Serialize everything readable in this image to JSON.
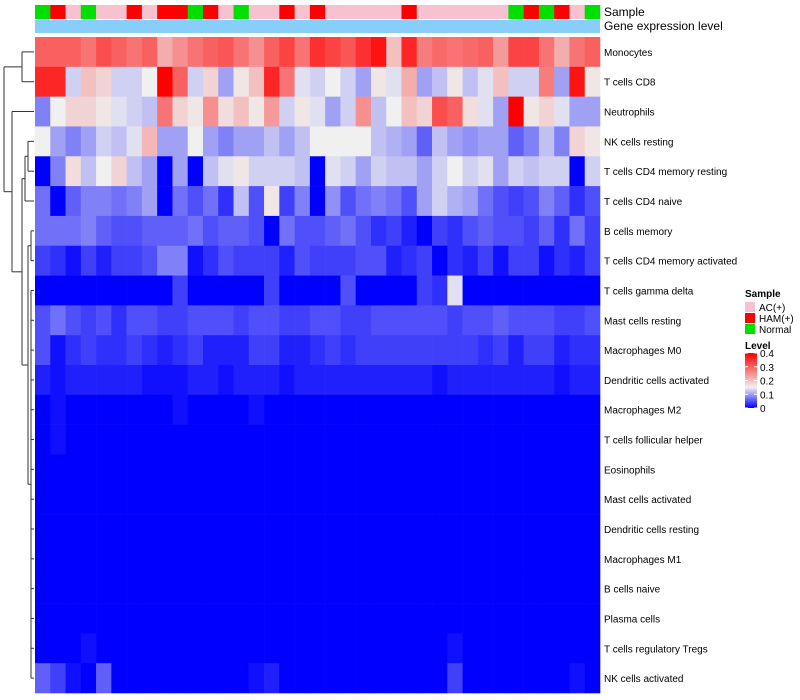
{
  "chart_data": {
    "type": "heatmap",
    "title": "",
    "annotation_labels": {
      "sample": "Sample",
      "gene_expression": "Gene expression level"
    },
    "sample_groups": [
      "AC(+)",
      "HAM(+)",
      "Normal"
    ],
    "sample_group_colors": {
      "AC(+)": "#f7c1cf",
      "HAM(+)": "#ff0000",
      "Normal": "#00e000"
    },
    "gene_expression_color": "#87cefa",
    "columns_sample_group": [
      "Normal",
      "HAM(+)",
      "AC(+)",
      "Normal",
      "AC(+)",
      "AC(+)",
      "HAM(+)",
      "AC(+)",
      "HAM(+)",
      "HAM(+)",
      "Normal",
      "HAM(+)",
      "AC(+)",
      "Normal",
      "AC(+)",
      "AC(+)",
      "HAM(+)",
      "AC(+)",
      "HAM(+)",
      "AC(+)",
      "AC(+)",
      "AC(+)",
      "AC(+)",
      "AC(+)",
      "HAM(+)",
      "AC(+)",
      "AC(+)",
      "AC(+)",
      "AC(+)",
      "AC(+)",
      "AC(+)",
      "Normal",
      "HAM(+)",
      "Normal",
      "HAM(+)",
      "AC(+)",
      "Normal"
    ],
    "rows": [
      "Monocytes",
      "T cells CD8",
      "Neutrophils",
      "NK cells resting",
      "T cells CD4 memory resting",
      "T cells CD4 naive",
      "B cells memory",
      "T cells CD4 memory activated",
      "T cells gamma delta",
      "Mast cells resting",
      "Macrophages M0",
      "Dendritic cells activated",
      "Macrophages M2",
      "T cells follicular helper",
      "Eosinophils",
      "Mast cells activated",
      "Dendritic cells resting",
      "Macrophages M1",
      "B cells naive",
      "Plasma cells",
      "T cells regulatory  Tregs",
      "NK cells activated"
    ],
    "values": [
      [
        0.3,
        0.3,
        0.3,
        0.28,
        0.32,
        0.3,
        0.28,
        0.3,
        0.22,
        0.25,
        0.28,
        0.3,
        0.31,
        0.28,
        0.25,
        0.3,
        0.33,
        0.28,
        0.35,
        0.33,
        0.31,
        0.35,
        0.38,
        0.2,
        0.36,
        0.27,
        0.29,
        0.28,
        0.29,
        0.3,
        0.24,
        0.33,
        0.33,
        0.28,
        0.22,
        0.28,
        0.3
      ],
      [
        0.36,
        0.36,
        0.13,
        0.2,
        0.18,
        0.13,
        0.13,
        0.15,
        0.4,
        0.3,
        0.13,
        0.18,
        0.1,
        0.16,
        0.2,
        0.36,
        0.28,
        0.14,
        0.13,
        0.15,
        0.13,
        0.1,
        0.16,
        0.14,
        0.22,
        0.1,
        0.12,
        0.16,
        0.12,
        0.14,
        0.2,
        0.13,
        0.13,
        0.27,
        0.1,
        0.38,
        0.16
      ],
      [
        0.08,
        0.15,
        0.18,
        0.18,
        0.16,
        0.14,
        0.13,
        0.12,
        0.28,
        0.18,
        0.16,
        0.25,
        0.17,
        0.2,
        0.16,
        0.24,
        0.13,
        0.16,
        0.14,
        0.1,
        0.13,
        0.25,
        0.12,
        0.15,
        0.2,
        0.18,
        0.32,
        0.3,
        0.17,
        0.14,
        0.1,
        0.4,
        0.16,
        0.18,
        0.14,
        0.1,
        0.1
      ],
      [
        0.15,
        0.1,
        0.08,
        0.1,
        0.13,
        0.12,
        0.14,
        0.21,
        0.1,
        0.1,
        0.15,
        0.1,
        0.08,
        0.1,
        0.1,
        0.12,
        0.1,
        0.12,
        0.15,
        0.15,
        0.15,
        0.15,
        0.12,
        0.11,
        0.1,
        0.06,
        0.12,
        0.1,
        0.09,
        0.1,
        0.1,
        0.06,
        0.08,
        0.12,
        0.08,
        0.18,
        0.16
      ],
      [
        0.0,
        0.08,
        0.17,
        0.12,
        0.15,
        0.18,
        0.12,
        0.1,
        0.0,
        0.1,
        0.0,
        0.12,
        0.14,
        0.16,
        0.13,
        0.13,
        0.13,
        0.12,
        0.0,
        0.14,
        0.13,
        0.1,
        0.13,
        0.12,
        0.12,
        0.1,
        0.13,
        0.15,
        0.13,
        0.14,
        0.1,
        0.13,
        0.12,
        0.13,
        0.13,
        0.0,
        0.13
      ],
      [
        0.07,
        0.0,
        0.06,
        0.08,
        0.08,
        0.07,
        0.08,
        0.1,
        0.0,
        0.07,
        0.05,
        0.07,
        0.03,
        0.12,
        0.05,
        0.16,
        0.04,
        0.08,
        0.0,
        0.09,
        0.05,
        0.07,
        0.08,
        0.07,
        0.05,
        0.1,
        0.13,
        0.11,
        0.1,
        0.07,
        0.05,
        0.04,
        0.05,
        0.08,
        0.06,
        0.03,
        0.05
      ],
      [
        0.07,
        0.07,
        0.07,
        0.08,
        0.06,
        0.05,
        0.05,
        0.06,
        0.06,
        0.06,
        0.07,
        0.05,
        0.06,
        0.06,
        0.05,
        0.0,
        0.07,
        0.05,
        0.05,
        0.06,
        0.07,
        0.05,
        0.03,
        0.04,
        0.02,
        0.0,
        0.04,
        0.03,
        0.05,
        0.06,
        0.05,
        0.05,
        0.04,
        0.06,
        0.03,
        0.07,
        0.04
      ],
      [
        0.04,
        0.03,
        0.01,
        0.04,
        0.02,
        0.04,
        0.04,
        0.05,
        0.08,
        0.08,
        0.01,
        0.03,
        0.05,
        0.04,
        0.04,
        0.04,
        0.02,
        0.05,
        0.04,
        0.04,
        0.04,
        0.05,
        0.05,
        0.02,
        0.03,
        0.04,
        0.0,
        0.03,
        0.02,
        0.04,
        0.01,
        0.04,
        0.04,
        0.01,
        0.03,
        0.02,
        0.04
      ],
      [
        0.0,
        0.0,
        0.0,
        0.0,
        0.0,
        0.0,
        0.0,
        0.0,
        0.0,
        0.04,
        0.0,
        0.0,
        0.0,
        0.0,
        0.0,
        0.04,
        0.0,
        0.0,
        0.0,
        0.0,
        0.05,
        0.0,
        0.0,
        0.0,
        0.0,
        0.04,
        0.03,
        0.14,
        0.0,
        0.0,
        0.0,
        0.0,
        0.0,
        0.0,
        0.0,
        0.0,
        0.0
      ],
      [
        0.05,
        0.07,
        0.05,
        0.04,
        0.05,
        0.03,
        0.05,
        0.05,
        0.04,
        0.04,
        0.05,
        0.05,
        0.05,
        0.04,
        0.05,
        0.05,
        0.04,
        0.04,
        0.05,
        0.05,
        0.04,
        0.04,
        0.05,
        0.05,
        0.05,
        0.05,
        0.05,
        0.04,
        0.05,
        0.05,
        0.06,
        0.05,
        0.05,
        0.05,
        0.04,
        0.04,
        0.05
      ],
      [
        0.05,
        0.01,
        0.03,
        0.04,
        0.03,
        0.03,
        0.04,
        0.03,
        0.02,
        0.03,
        0.04,
        0.02,
        0.02,
        0.02,
        0.04,
        0.04,
        0.02,
        0.02,
        0.03,
        0.04,
        0.03,
        0.04,
        0.04,
        0.04,
        0.04,
        0.04,
        0.04,
        0.04,
        0.04,
        0.03,
        0.04,
        0.02,
        0.04,
        0.04,
        0.02,
        0.03,
        0.03
      ],
      [
        0.02,
        0.01,
        0.02,
        0.02,
        0.02,
        0.02,
        0.02,
        0.01,
        0.01,
        0.01,
        0.02,
        0.02,
        0.01,
        0.02,
        0.02,
        0.02,
        0.01,
        0.02,
        0.02,
        0.02,
        0.02,
        0.02,
        0.02,
        0.02,
        0.02,
        0.02,
        0.01,
        0.02,
        0.02,
        0.02,
        0.02,
        0.02,
        0.02,
        0.02,
        0.01,
        0.02,
        0.02
      ],
      [
        0.0,
        0.01,
        0.0,
        0.0,
        0.0,
        0.0,
        0.0,
        0.0,
        0.0,
        0.01,
        0.0,
        0.0,
        0.0,
        0.0,
        0.01,
        0.0,
        0.0,
        0.0,
        0.0,
        0.0,
        0.0,
        0.0,
        0.0,
        0.0,
        0.0,
        0.0,
        0.0,
        0.0,
        0.0,
        0.0,
        0.0,
        0.0,
        0.0,
        0.0,
        0.0,
        0.0,
        0.0
      ],
      [
        0.0,
        0.01,
        0.0,
        0.0,
        0.0,
        0.0,
        0.0,
        0.0,
        0.0,
        0.0,
        0.0,
        0.0,
        0.0,
        0.0,
        0.0,
        0.0,
        0.0,
        0.0,
        0.0,
        0.0,
        0.0,
        0.0,
        0.0,
        0.0,
        0.0,
        0.0,
        0.0,
        0.0,
        0.0,
        0.0,
        0.0,
        0.0,
        0.0,
        0.0,
        0.0,
        0.0,
        0.0
      ],
      [
        0.0,
        0.0,
        0.0,
        0.0,
        0.0,
        0.0,
        0.0,
        0.0,
        0.0,
        0.0,
        0.0,
        0.0,
        0.0,
        0.0,
        0.0,
        0.0,
        0.0,
        0.0,
        0.0,
        0.0,
        0.0,
        0.0,
        0.0,
        0.0,
        0.0,
        0.0,
        0.0,
        0.0,
        0.0,
        0.0,
        0.0,
        0.0,
        0.0,
        0.0,
        0.0,
        0.0,
        0.0
      ],
      [
        0.0,
        0.0,
        0.0,
        0.0,
        0.0,
        0.0,
        0.0,
        0.0,
        0.0,
        0.0,
        0.0,
        0.0,
        0.0,
        0.0,
        0.0,
        0.0,
        0.0,
        0.0,
        0.0,
        0.0,
        0.0,
        0.0,
        0.0,
        0.0,
        0.0,
        0.0,
        0.0,
        0.0,
        0.0,
        0.0,
        0.0,
        0.0,
        0.0,
        0.0,
        0.0,
        0.0,
        0.0
      ],
      [
        0.0,
        0.0,
        0.0,
        0.0,
        0.0,
        0.0,
        0.0,
        0.0,
        0.0,
        0.0,
        0.0,
        0.0,
        0.0,
        0.0,
        0.0,
        0.0,
        0.0,
        0.0,
        0.0,
        0.0,
        0.0,
        0.0,
        0.0,
        0.0,
        0.0,
        0.0,
        0.0,
        0.0,
        0.0,
        0.0,
        0.0,
        0.0,
        0.0,
        0.0,
        0.0,
        0.0,
        0.0
      ],
      [
        0.0,
        0.0,
        0.0,
        0.0,
        0.0,
        0.0,
        0.0,
        0.0,
        0.0,
        0.0,
        0.0,
        0.0,
        0.0,
        0.0,
        0.0,
        0.0,
        0.0,
        0.0,
        0.0,
        0.0,
        0.0,
        0.0,
        0.0,
        0.0,
        0.0,
        0.0,
        0.0,
        0.0,
        0.0,
        0.0,
        0.0,
        0.0,
        0.0,
        0.0,
        0.0,
        0.0,
        0.0
      ],
      [
        0.0,
        0.0,
        0.0,
        0.0,
        0.0,
        0.0,
        0.0,
        0.0,
        0.0,
        0.0,
        0.0,
        0.0,
        0.0,
        0.0,
        0.0,
        0.0,
        0.0,
        0.0,
        0.0,
        0.0,
        0.0,
        0.0,
        0.0,
        0.0,
        0.0,
        0.0,
        0.0,
        0.0,
        0.0,
        0.0,
        0.0,
        0.0,
        0.0,
        0.0,
        0.0,
        0.0,
        0.0
      ],
      [
        0.0,
        0.0,
        0.0,
        0.0,
        0.0,
        0.0,
        0.0,
        0.0,
        0.0,
        0.0,
        0.0,
        0.0,
        0.0,
        0.0,
        0.0,
        0.0,
        0.0,
        0.0,
        0.0,
        0.0,
        0.0,
        0.0,
        0.0,
        0.0,
        0.0,
        0.0,
        0.0,
        0.0,
        0.0,
        0.0,
        0.0,
        0.0,
        0.0,
        0.0,
        0.0,
        0.0,
        0.0
      ],
      [
        0.0,
        0.0,
        0.0,
        0.01,
        0.0,
        0.0,
        0.0,
        0.0,
        0.0,
        0.0,
        0.0,
        0.0,
        0.0,
        0.0,
        0.0,
        0.0,
        0.0,
        0.0,
        0.0,
        0.0,
        0.0,
        0.0,
        0.0,
        0.0,
        0.0,
        0.0,
        0.0,
        0.01,
        0.0,
        0.0,
        0.0,
        0.0,
        0.0,
        0.0,
        0.0,
        0.0,
        0.0
      ],
      [
        0.06,
        0.04,
        0.01,
        0.0,
        0.06,
        0.0,
        0.0,
        0.0,
        0.0,
        0.0,
        0.0,
        0.0,
        0.0,
        0.0,
        0.01,
        0.02,
        0.0,
        0.0,
        0.0,
        0.0,
        0.0,
        0.0,
        0.0,
        0.0,
        0.0,
        0.0,
        0.0,
        0.04,
        0.0,
        0.0,
        0.0,
        0.0,
        0.0,
        0.0,
        0.0,
        0.01,
        0.0
      ]
    ],
    "color_scale": {
      "min": 0,
      "mid": 0.15,
      "max": 0.4,
      "low_color": "#0000ff",
      "mid_color": "#f0f0f0",
      "high_color": "#ff0000"
    },
    "legend": {
      "position": "right",
      "sample_title": "Sample",
      "level_title": "Level",
      "level_ticks": [
        "0.4",
        "0.3",
        "0.2",
        "0.1",
        "0"
      ]
    },
    "row_dendrogram": "left"
  }
}
